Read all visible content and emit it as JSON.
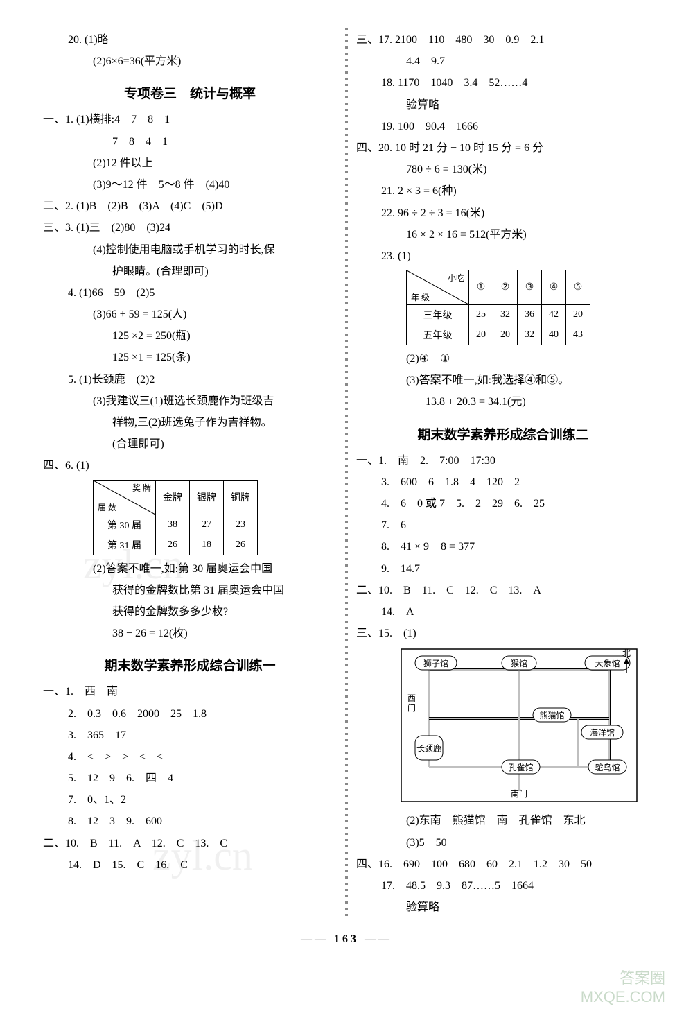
{
  "left": {
    "q20": {
      "num": "20.",
      "p1": "(1)略",
      "p2": "(2)6×6=36(平方米)"
    },
    "section_title": "专项卷三　统计与概率",
    "s1": {
      "label": "一、1.",
      "p1": "(1)横排:4　7　8　1",
      "p1b": "7　8　4　1",
      "p2": "(2)12 件以上",
      "p3": "(3)9～12 件　5～8 件　(4)40"
    },
    "s2": {
      "label": "二、2.",
      "text": "(1)B　(2)B　(3)A　(4)C　(5)D"
    },
    "s3": {
      "label": "三、3.",
      "p1": "(1)三　(2)80　(3)24",
      "p2": "(4)控制使用电脑或手机学习的时长,保",
      "p2b": "护眼睛。(合理即可)"
    },
    "s4": {
      "label": "4.",
      "p1": "(1)66　59　(2)5",
      "p2": "(3)66 + 59 = 125(人)",
      "p3": "125 ×2 = 250(瓶)",
      "p4": "125 ×1 = 125(条)"
    },
    "s5": {
      "label": "5.",
      "p1": "(1)长颈鹿　(2)2",
      "p2": "(3)我建议三(1)班选长颈鹿作为班级吉",
      "p3": "祥物,三(2)班选兔子作为吉祥物。",
      "p4": "(合理即可)"
    },
    "s6": {
      "label": "四、6.",
      "p1": "(1)"
    },
    "table1": {
      "diag_top": "奖 牌",
      "diag_mid": "数\n量/ 枚",
      "diag_bot": "届 数",
      "cols": [
        "金牌",
        "银牌",
        "铜牌"
      ],
      "rows": [
        {
          "label": "第 30 届",
          "vals": [
            "38",
            "27",
            "23"
          ]
        },
        {
          "label": "第 31 届",
          "vals": [
            "26",
            "18",
            "26"
          ]
        }
      ]
    },
    "s6b": {
      "p1": "(2)答案不唯一,如:第 30 届奥运会中国",
      "p2": "获得的金牌数比第 31 届奥运会中国",
      "p3": "获得的金牌数多多少枚?",
      "p4": "38 − 26 = 12(枚)"
    },
    "final_title": "期末数学素养形成综合训练一",
    "f1": {
      "l1": "一、1.　西　南",
      "l2": "2.　0.3　0.6　2000　25　1.8",
      "l3": "3.　365　17",
      "l4": "4.　<　>　>　<　<",
      "l5": "5.　12　9　6.　四　4",
      "l7": "7.　0、1、2",
      "l8": "8.　12　3　9.　600"
    },
    "f2": {
      "l1": "二、10.　B　11.　A　12.　C　13.　C",
      "l2": "14.　D　15.　C　16.　C"
    }
  },
  "right": {
    "s17": {
      "label": "三、17.",
      "p1": "2100　110　480　30　0.9　2.1",
      "p2": "4.4　9.7"
    },
    "s18": {
      "label": "18.",
      "p1": "1170　1040　3.4　52……4",
      "p2": "验算略"
    },
    "s19": {
      "label": "19.",
      "p1": "100　90.4　1666"
    },
    "s20": {
      "label": "四、20.",
      "p1": "10 时 21 分 − 10 时 15 分 = 6 分",
      "p2": "780 ÷ 6 = 130(米)"
    },
    "s21": {
      "label": "21.",
      "p1": "2 × 3 = 6(种)"
    },
    "s22": {
      "label": "22.",
      "p1": "96 ÷ 2 ÷ 3 = 16(米)",
      "p2": "16 × 2 × 16 = 512(平方米)"
    },
    "s23": {
      "label": "23.",
      "p1": "(1)"
    },
    "table2": {
      "diag_top": "小吃",
      "diag_mid": "人\n数",
      "diag_bot": "年 级",
      "cols": [
        "①",
        "②",
        "③",
        "④",
        "⑤"
      ],
      "rows": [
        {
          "label": "三年级",
          "vals": [
            "25",
            "32",
            "36",
            "42",
            "20"
          ]
        },
        {
          "label": "五年级",
          "vals": [
            "20",
            "20",
            "32",
            "40",
            "43"
          ]
        }
      ]
    },
    "s23b": {
      "p1": "(2)④　①",
      "p2": "(3)答案不唯一,如:我选择④和⑤。",
      "p3": "13.8 + 20.3 = 34.1(元)"
    },
    "final_title": "期末数学素养形成综合训练二",
    "f1": {
      "l1": "一、1.　南　2.　7:00　17:30",
      "l2": "3.　600　6　1.8　4　120　2",
      "l3": "4.　6　0 或 7　5.　2　29　6.　25",
      "l4": "7.　6",
      "l5": "8.　41 × 9 + 8 = 377",
      "l6": "9.　14.7"
    },
    "f2": {
      "l1": "二、10.　B　11.　C　12.　C　13.　A",
      "l2": "14.　A"
    },
    "f3": {
      "l1": "三、15.　(1)"
    },
    "map": {
      "nodes": {
        "lion": "狮子馆",
        "monkey": "猴馆",
        "elephant": "大象馆",
        "north": "北",
        "west": "西门",
        "panda": "熊猫馆",
        "ocean": "海洋馆",
        "giraffe": "长颈\n鹿馆",
        "peacock": "孔雀馆",
        "ostrich": "鸵鸟馆",
        "south": "南门"
      }
    },
    "f3b": {
      "p1": "(2)东南　熊猫馆　南　孔雀馆　东北",
      "p2": "(3)5　50"
    },
    "f4": {
      "l1": "四、16.　690　100　680　60　2.1　1.2　30　50",
      "l2": "17.　48.5　9.3　87……5　1664",
      "l3": "验算略"
    }
  },
  "page_num": "163",
  "watermarks": {
    "w1": "zyl.cn",
    "w2": "zyl.cn",
    "brand1": "答案圈",
    "brand2": "MXQE.COM"
  }
}
